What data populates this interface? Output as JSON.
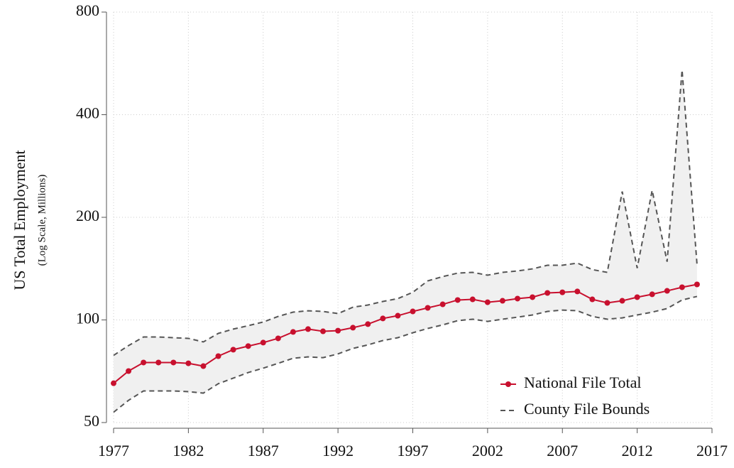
{
  "chart_data": {
    "type": "line",
    "ylabel": "US Total Employment",
    "ylabel_sub": "(Log Scale, Millions)",
    "log_y": true,
    "grid": true,
    "legend": "lower right",
    "xlim": [
      1977,
      2017
    ],
    "xticks": [
      1977,
      1982,
      1987,
      1992,
      1997,
      2002,
      2007,
      2012,
      2017
    ],
    "ylim": [
      50,
      800
    ],
    "yticks": [
      50,
      100,
      200,
      400,
      800
    ],
    "x": [
      1977,
      1978,
      1979,
      1980,
      1981,
      1982,
      1983,
      1984,
      1985,
      1986,
      1987,
      1988,
      1989,
      1990,
      1991,
      1992,
      1993,
      1994,
      1995,
      1996,
      1997,
      1998,
      1999,
      2000,
      2001,
      2002,
      2003,
      2004,
      2005,
      2006,
      2007,
      2008,
      2009,
      2010,
      2011,
      2012,
      2013,
      2014,
      2015,
      2016
    ],
    "series": [
      {
        "name": "National File Total",
        "color": "#c8102e",
        "values": [
          65.2,
          70.8,
          75.0,
          75.0,
          75.0,
          74.6,
          73.2,
          78.3,
          81.8,
          83.8,
          85.8,
          88.3,
          92.2,
          94.0,
          92.6,
          93.0,
          94.9,
          97.2,
          101.0,
          102.9,
          105.9,
          108.5,
          111.1,
          114.4,
          114.9,
          112.7,
          113.8,
          115.5,
          116.6,
          120.0,
          120.5,
          121.2,
          114.9,
          112.2,
          113.8,
          116.6,
          118.9,
          121.7,
          124.7,
          127.1
        ]
      }
    ],
    "bounds": {
      "name": "County File Bounds",
      "color": "#555555",
      "fill": "#f0f0f0",
      "upper": [
        78.7,
        84.1,
        89.1,
        89.1,
        88.7,
        88.3,
        86.2,
        91.3,
        94.0,
        96.2,
        98.6,
        102.4,
        105.4,
        106.4,
        105.9,
        104.4,
        109.0,
        110.6,
        113.3,
        115.5,
        120.5,
        130.2,
        134.0,
        137.2,
        137.9,
        135.3,
        137.9,
        139.2,
        141.2,
        144.7,
        144.7,
        146.8,
        140.5,
        137.9,
        238,
        141.9,
        240,
        148.2,
        541,
        145.3
      ],
      "lower": [
        53.6,
        58.1,
        61.9,
        61.9,
        61.9,
        61.6,
        61.0,
        65.0,
        67.5,
        70.1,
        72.2,
        74.6,
        77.2,
        77.9,
        77.5,
        79.5,
        82.5,
        84.5,
        87.0,
        88.7,
        91.7,
        94.4,
        96.7,
        99.5,
        100.5,
        99.0,
        100.5,
        101.9,
        103.4,
        105.9,
        106.9,
        106.4,
        102.4,
        100.5,
        101.4,
        103.4,
        105.4,
        108.0,
        114.4,
        117.2
      ]
    }
  }
}
